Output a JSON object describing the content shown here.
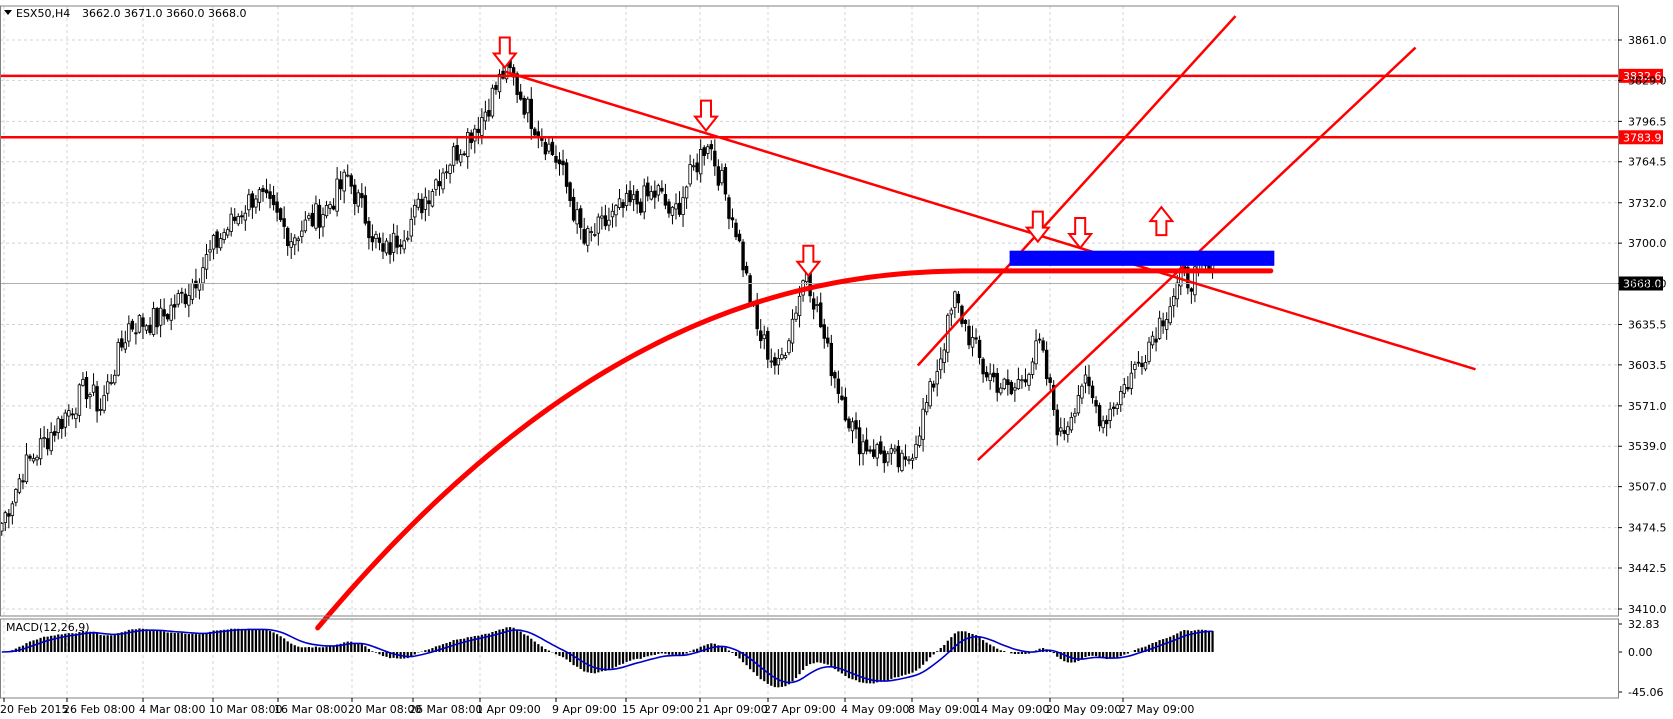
{
  "header": {
    "symbol": "ESX50,H4",
    "ohlc": "3662.0 3671.0 3660.0 3668.0"
  },
  "indicator": {
    "label": "MACD(12,26,9)"
  },
  "colors": {
    "bull_candle": "#ffffff",
    "bear_candle": "#000000",
    "annotation": "#ff0000",
    "zone": "#0000ff",
    "signal": "#0000cc",
    "grid": "#d0d4d8"
  },
  "chart_data": [
    {
      "type": "candlestick",
      "ylim": [
        3410.0,
        3861.0
      ],
      "yticks": [
        "3861.0",
        "3829.0",
        "3796.5",
        "3764.5",
        "3732.0",
        "3700.0",
        "3668.0",
        "3635.5",
        "3603.5",
        "3571.0",
        "3539.0",
        "3507.0",
        "3474.5",
        "3442.5",
        "3410.0"
      ],
      "xtick_labels": [
        "20 Feb 2015",
        "26 Feb 08:00",
        "4 Mar 08:00",
        "10 Mar 08:00",
        "16 Mar 08:00",
        "20 Mar 08:00",
        "26 Mar 08:00",
        "1 Apr 09:00",
        "9 Apr 09:00",
        "15 Apr 09:00",
        "21 Apr 09:00",
        "27 Apr 09:00",
        "4 May 09:00",
        "8 May 09:00",
        "14 May 09:00",
        "20 May 09:00",
        "27 May 09:00"
      ],
      "bar_count": 190,
      "price_path": [
        [
          0,
          3478
        ],
        [
          6,
          3520
        ],
        [
          14,
          3550
        ],
        [
          24,
          3585
        ],
        [
          28,
          3570
        ],
        [
          36,
          3635
        ],
        [
          45,
          3640
        ],
        [
          52,
          3660
        ],
        [
          62,
          3705
        ],
        [
          72,
          3740
        ],
        [
          82,
          3705
        ],
        [
          92,
          3728
        ],
        [
          98,
          3752
        ],
        [
          108,
          3690
        ],
        [
          116,
          3718
        ],
        [
          124,
          3755
        ],
        [
          136,
          3800
        ],
        [
          143,
          3840
        ],
        [
          150,
          3800
        ],
        [
          158,
          3762
        ],
        [
          165,
          3700
        ],
        [
          175,
          3726
        ],
        [
          186,
          3740
        ],
        [
          190,
          3720
        ],
        [
          200,
          3783
        ],
        [
          208,
          3712
        ],
        [
          214,
          3630
        ],
        [
          220,
          3600
        ],
        [
          228,
          3680
        ],
        [
          234,
          3612
        ],
        [
          242,
          3545
        ],
        [
          256,
          3522
        ],
        [
          263,
          3580
        ],
        [
          270,
          3655
        ],
        [
          278,
          3600
        ],
        [
          286,
          3580
        ],
        [
          294,
          3618
        ],
        [
          300,
          3545
        ],
        [
          306,
          3590
        ],
        [
          312,
          3560
        ],
        [
          320,
          3595
        ],
        [
          334,
          3670
        ],
        [
          348,
          3683
        ],
        [
          356,
          3693
        ],
        [
          362,
          3672
        ],
        [
          370,
          3615
        ],
        [
          378,
          3685
        ],
        [
          382,
          3670
        ],
        [
          384,
          3668
        ]
      ],
      "horizontal_levels": [
        {
          "price": 3832.6,
          "label": "3832.6"
        },
        {
          "price": 3783.9,
          "label": "3783.9"
        }
      ],
      "current_price": {
        "price": 3668.0,
        "label": "3668.0"
      },
      "moving_average": [
        [
          3395.0,
          80
        ],
        [
          3440.0,
          110
        ],
        [
          3500.0,
          140
        ],
        [
          3560.0,
          170
        ],
        [
          3610.0,
          200
        ],
        [
          3638.0,
          215
        ],
        [
          3655.0,
          225
        ],
        [
          3666.0,
          235
        ],
        [
          3672.0,
          250
        ],
        [
          3676.0,
          270
        ],
        [
          3678.0,
          300
        ],
        [
          3678.0,
          320
        ]
      ],
      "trendline_down": {
        "from": [
          143,
          3836
        ],
        "to": [
          418,
          3600
        ]
      },
      "channel_upper": {
        "from": [
          260,
          3603
        ],
        "to": [
          350,
          3880
        ]
      },
      "channel_lower": {
        "from": [
          277,
          3528
        ],
        "to": [
          401,
          3855
        ]
      },
      "resistance_zone": {
        "x_from": 286,
        "x_to": 361,
        "y_high": 3694,
        "y_low": 3682
      },
      "arrows": [
        {
          "direction": "down",
          "bar": 143,
          "price": 3836
        },
        {
          "direction": "down",
          "bar": 200,
          "price": 3786
        },
        {
          "direction": "down",
          "bar": 229,
          "price": 3671
        },
        {
          "direction": "down",
          "bar": 294,
          "price": 3698
        },
        {
          "direction": "down",
          "bar": 306,
          "price": 3693
        },
        {
          "direction": "up",
          "bar": 329,
          "price": 3700
        }
      ]
    },
    {
      "type": "histogram",
      "name": "MACD(12,26,9)",
      "ylim": [
        -45.06,
        32.83
      ],
      "yticks": [
        "32.83",
        "0.00",
        "-45.06"
      ],
      "signal_line": true
    }
  ]
}
